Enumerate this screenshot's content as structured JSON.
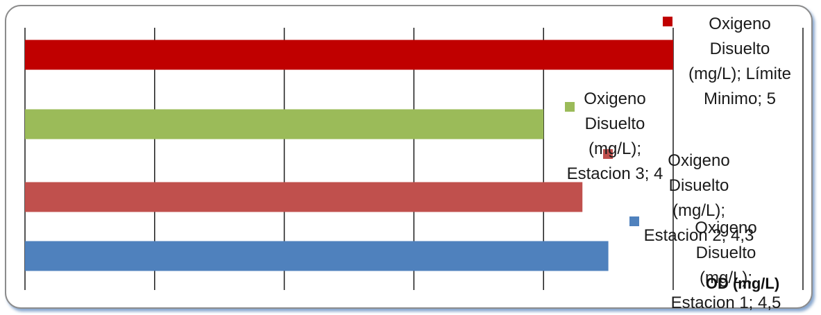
{
  "chart_data": {
    "type": "bar",
    "orientation": "horizontal",
    "title": "",
    "xlabel": "OD (mg/L)",
    "ylabel": "",
    "xlim": [
      0,
      5
    ],
    "grid": true,
    "categories": [
      "Estacion 1",
      "Estacion 2",
      "Estacion 3",
      "Límite Minimo"
    ],
    "series": [
      {
        "name": "Oxigeno Disuelto (mg/L)",
        "label": "Estacion 1",
        "value": 4.5,
        "value_text": "4,5",
        "color": "#4f81bd"
      },
      {
        "name": "Oxigeno Disuelto (mg/L)",
        "label": "Estacion 2",
        "value": 4.3,
        "value_text": "4,3",
        "color": "#c0504d"
      },
      {
        "name": "Oxigeno Disuelto (mg/L)",
        "label": "Estacion 3",
        "value": 4,
        "value_text": "4",
        "color": "#9bbb59"
      },
      {
        "name": "Oxigeno Disuelto (mg/L)",
        "label": "Límite Minimo",
        "value": 5,
        "value_text": "5",
        "color": "#c00000"
      }
    ]
  }
}
